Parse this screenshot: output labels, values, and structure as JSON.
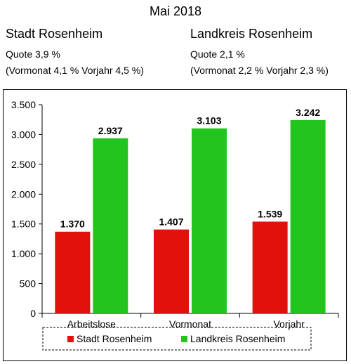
{
  "header": {
    "title": "Mai 2018",
    "left": {
      "name": "Stadt Rosenheim",
      "quote": "Quote 3,9 %",
      "previous": "(Vormonat 4,1 % Vorjahr  4,5 %)"
    },
    "right": {
      "name": "Landkreis Rosenheim",
      "quote": "Quote 2,1 %",
      "previous": "(Vormonat 2,2 % Vorjahr 2,3 %)"
    }
  },
  "chart_data": {
    "type": "bar",
    "categories": [
      "Arbeitslose",
      "Vormonat",
      "Vorjahr"
    ],
    "series": [
      {
        "name": "Stadt Rosenheim",
        "values": [
          1370,
          1407,
          1539
        ],
        "labels": [
          "1.370",
          "1.407",
          "1.539"
        ],
        "color": "#e0120b"
      },
      {
        "name": "Landkreis Rosenheim",
        "values": [
          2937,
          3103,
          3242
        ],
        "labels": [
          "2.937",
          "3.103",
          "3.242"
        ],
        "color": "#22c41d"
      }
    ],
    "ylim": [
      0,
      3500
    ],
    "yticks": [
      0,
      500,
      1000,
      1500,
      2000,
      2500,
      3000,
      3500
    ],
    "ytick_labels": [
      "0",
      "500",
      "1.000",
      "1.500",
      "2.000",
      "2.500",
      "3.000",
      "3.500"
    ],
    "grid": false,
    "legend_position": "bottom"
  }
}
